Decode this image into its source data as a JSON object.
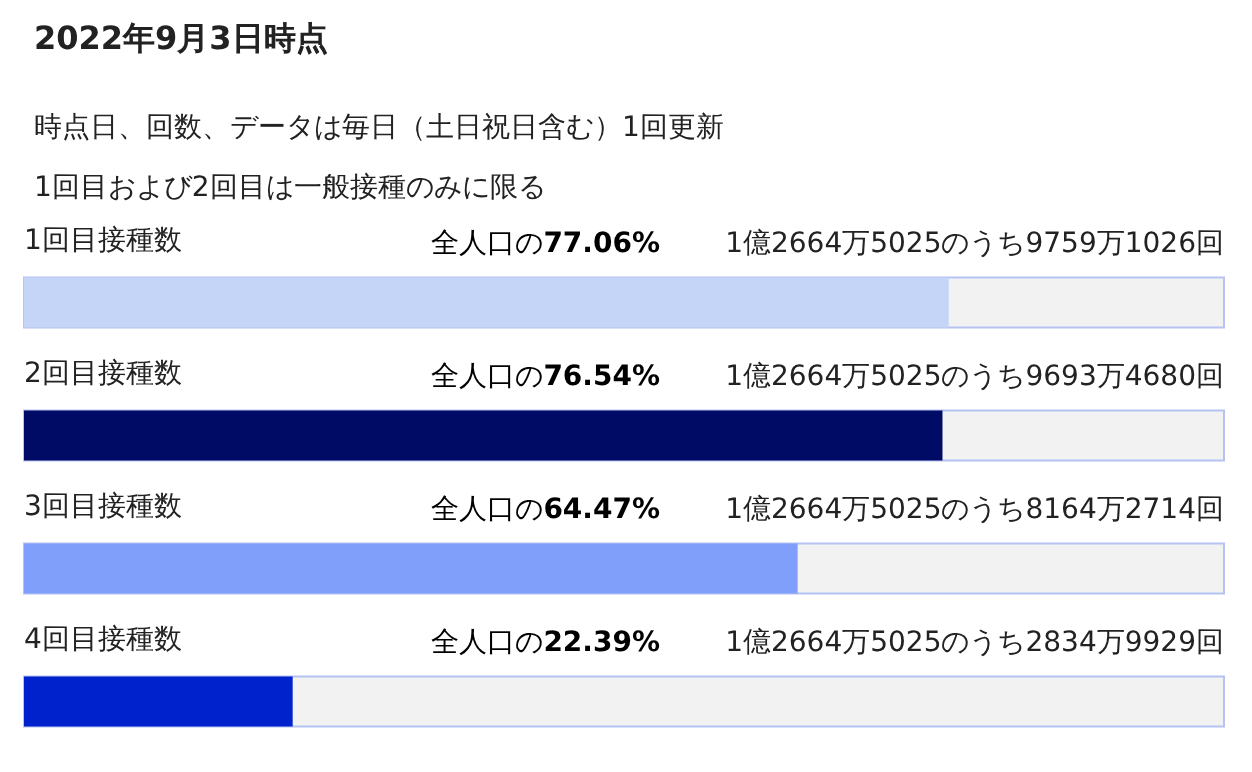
{
  "chart_data": {
    "type": "bar",
    "orientation": "horizontal",
    "title": "2022年9月3日時点",
    "subtitle": "時点日、回数、データは毎日（土日祝日含む）1回更新\n1回目および2回目は一般接種のみに限る",
    "categories": [
      "1回目接種数",
      "2回目接種数",
      "3回目接種数",
      "4回目接種数"
    ],
    "values": [
      77.06,
      76.54,
      64.47,
      22.39
    ],
    "colors": [
      "#c5d5f7",
      "#000b66",
      "#7f9ffa",
      "#0022cc"
    ],
    "value_labels": [
      "全人口の77.06%",
      "全人口の76.54%",
      "全人口の64.47%",
      "全人口の22.39%"
    ],
    "annotations": [
      "1億2664万5025のうち9759万1026回",
      "1億2664万5025のうち9693万4680回",
      "1億2664万5025のうち8164万2714回",
      "1億2664万5025のうち2834万9929回"
    ],
    "xlim": [
      0,
      100
    ],
    "tick_labels": "y"
  }
}
